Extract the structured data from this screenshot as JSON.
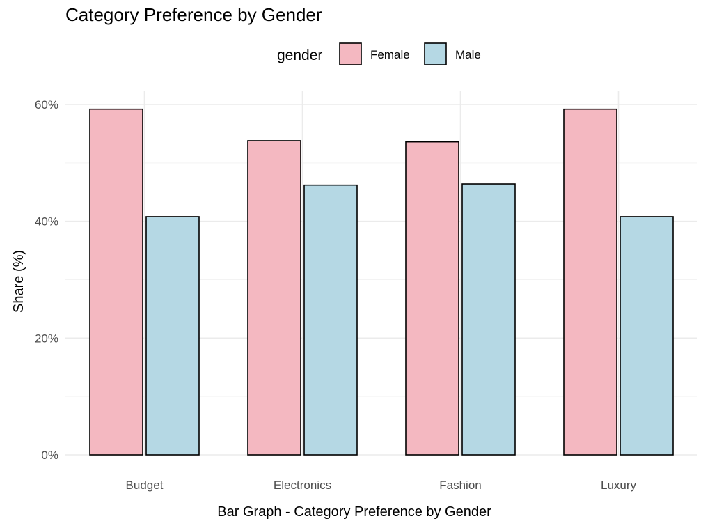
{
  "chart_data": {
    "type": "bar",
    "title": "Category Preference by Gender",
    "xlabel": "Bar Graph - Category Preference by Gender",
    "ylabel": "Share (%)",
    "categories": [
      "Budget",
      "Electronics",
      "Fashion",
      "Luxury"
    ],
    "series": [
      {
        "name": "Female",
        "values": [
          59.2,
          53.8,
          53.6,
          59.2
        ],
        "color": "#f4b8c1"
      },
      {
        "name": "Male",
        "values": [
          40.8,
          46.2,
          46.4,
          40.8
        ],
        "color": "#b5d8e4"
      }
    ],
    "ylim": [
      0,
      60
    ],
    "yticks": [
      0,
      20,
      40,
      60
    ],
    "ytick_labels": [
      "0%",
      "20%",
      "40%",
      "60%"
    ],
    "legend": {
      "title": "gender",
      "position": "top"
    },
    "grid": true
  }
}
